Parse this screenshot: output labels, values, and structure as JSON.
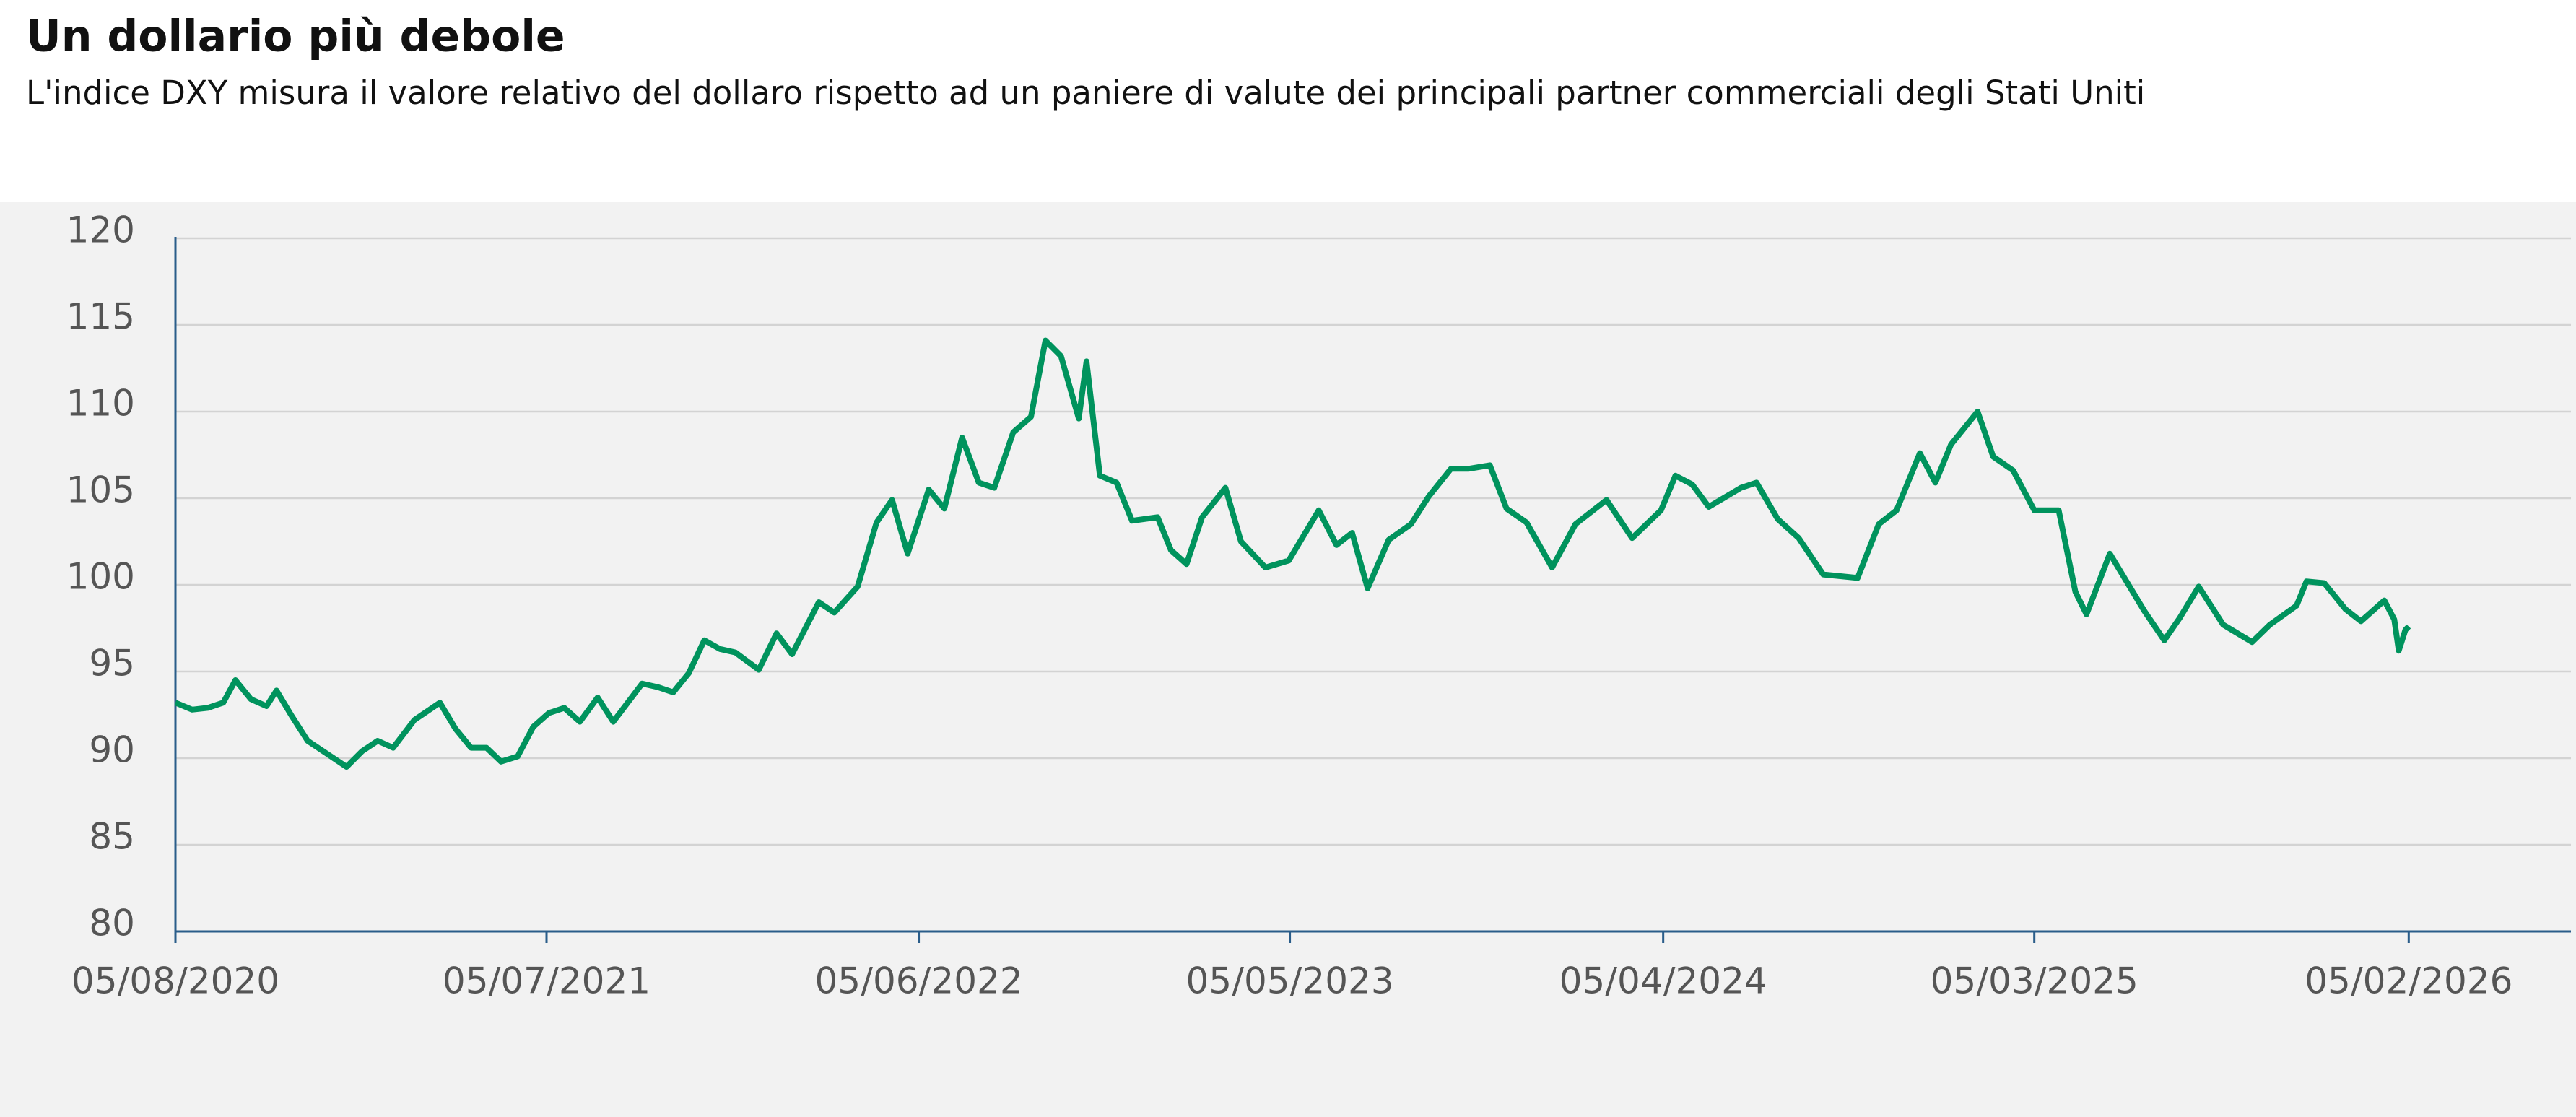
{
  "chart_data": {
    "type": "line",
    "title": "Un dollario più debole",
    "subtitle": "L'indice DXY misura il valore relativo del dollaro rispetto ad un paniere di valute dei principali partner commerciali degli Stati Uniti",
    "x": [
      "2020-08-05",
      "2020-08-20",
      "2020-09-03",
      "2020-09-17",
      "2020-09-28",
      "2020-10-12",
      "2020-10-26",
      "2020-11-04",
      "2020-11-18",
      "2020-12-02",
      "2020-12-16",
      "2021-01-06",
      "2021-01-20",
      "2021-02-03",
      "2021-02-17",
      "2021-03-08",
      "2021-03-31",
      "2021-04-14",
      "2021-04-28",
      "2021-05-12",
      "2021-05-25",
      "2021-06-09",
      "2021-06-23",
      "2021-07-07",
      "2021-07-21",
      "2021-08-04",
      "2021-08-20",
      "2021-09-03",
      "2021-09-29",
      "2021-10-13",
      "2021-10-27",
      "2021-11-10",
      "2021-11-24",
      "2021-12-08",
      "2021-12-22",
      "2022-01-12",
      "2022-01-28",
      "2022-02-11",
      "2022-03-07",
      "2022-03-21",
      "2022-04-11",
      "2022-04-28",
      "2022-05-12",
      "2022-05-26",
      "2022-06-14",
      "2022-06-28",
      "2022-07-14",
      "2022-07-29",
      "2022-08-12",
      "2022-08-29",
      "2022-09-14",
      "2022-09-27",
      "2022-10-11",
      "2022-10-27",
      "2022-11-03",
      "2022-11-15",
      "2022-11-30",
      "2022-12-14",
      "2023-01-06",
      "2023-01-18",
      "2023-02-01",
      "2023-02-15",
      "2023-03-08",
      "2023-03-22",
      "2023-04-13",
      "2023-05-04",
      "2023-05-31",
      "2023-06-16",
      "2023-06-30",
      "2023-07-14",
      "2023-08-02",
      "2023-08-22",
      "2023-09-07",
      "2023-09-27",
      "2023-10-13",
      "2023-11-01",
      "2023-11-16",
      "2023-12-04",
      "2023-12-27",
      "2024-01-17",
      "2024-02-14",
      "2024-03-08",
      "2024-04-03",
      "2024-04-16",
      "2024-05-01",
      "2024-05-16",
      "2024-06-14",
      "2024-06-28",
      "2024-07-17",
      "2024-08-05",
      "2024-08-27",
      "2024-09-27",
      "2024-10-16",
      "2024-11-01",
      "2024-11-22",
      "2024-12-06",
      "2024-12-20",
      "2025-01-13",
      "2025-01-27",
      "2025-02-14",
      "2025-03-05",
      "2025-03-27",
      "2025-04-11",
      "2025-04-21",
      "2025-05-12",
      "2025-06-12",
      "2025-06-30",
      "2025-07-14",
      "2025-07-31",
      "2025-08-22",
      "2025-09-17",
      "2025-10-03",
      "2025-10-27",
      "2025-11-05",
      "2025-11-21",
      "2025-12-10",
      "2025-12-24",
      "2026-01-14",
      "2026-01-23",
      "2026-01-27",
      "2026-02-02",
      "2026-02-05"
    ],
    "series": [
      {
        "color": "#00935d",
        "values": [
          93.2,
          92.8,
          92.9,
          93.2,
          94.5,
          93.4,
          93.0,
          93.9,
          92.4,
          91.0,
          90.4,
          89.5,
          90.4,
          91.0,
          90.6,
          92.2,
          93.2,
          91.7,
          90.6,
          90.6,
          89.8,
          90.1,
          91.8,
          92.6,
          92.9,
          92.1,
          93.5,
          92.1,
          94.3,
          94.1,
          93.8,
          94.9,
          96.8,
          96.3,
          96.1,
          95.1,
          97.2,
          96.0,
          99.0,
          98.4,
          99.9,
          103.6,
          104.9,
          101.8,
          105.5,
          104.4,
          108.5,
          105.9,
          105.6,
          108.8,
          109.7,
          114.1,
          113.2,
          109.6,
          112.9,
          106.3,
          105.9,
          103.7,
          103.9,
          102.0,
          101.2,
          103.9,
          105.6,
          102.5,
          101.0,
          101.4,
          104.3,
          102.3,
          103.0,
          99.8,
          102.6,
          103.5,
          105.1,
          106.7,
          106.7,
          106.9,
          104.4,
          103.6,
          101.0,
          103.5,
          104.9,
          102.7,
          104.3,
          106.3,
          105.8,
          104.5,
          105.6,
          105.9,
          103.8,
          102.7,
          100.6,
          100.4,
          103.5,
          104.3,
          107.6,
          105.9,
          108.1,
          110.0,
          107.4,
          106.6,
          104.3,
          104.3,
          99.6,
          98.3,
          101.8,
          98.5,
          96.8,
          98.1,
          99.9,
          97.7,
          96.7,
          97.7,
          98.8,
          100.2,
          100.1,
          98.6,
          97.9,
          99.1,
          98.0,
          96.2,
          97.4,
          97.6
        ]
      }
    ],
    "xlim": [
      "2020-08-05",
      "2026-07-01"
    ],
    "xticks": [
      {
        "value": "2020-08-05",
        "label": "05/08/2020"
      },
      {
        "value": "2021-07-05",
        "label": "05/07/2021"
      },
      {
        "value": "2022-06-05",
        "label": "05/06/2022"
      },
      {
        "value": "2023-05-05",
        "label": "05/05/2023"
      },
      {
        "value": "2024-04-05",
        "label": "05/04/2024"
      },
      {
        "value": "2025-03-05",
        "label": "05/03/2025"
      },
      {
        "value": "2026-02-05",
        "label": "05/02/2026"
      }
    ],
    "ylim": [
      80,
      120
    ],
    "yticks": [
      80,
      85,
      90,
      95,
      100,
      105,
      110,
      115,
      120
    ],
    "grid": true
  }
}
